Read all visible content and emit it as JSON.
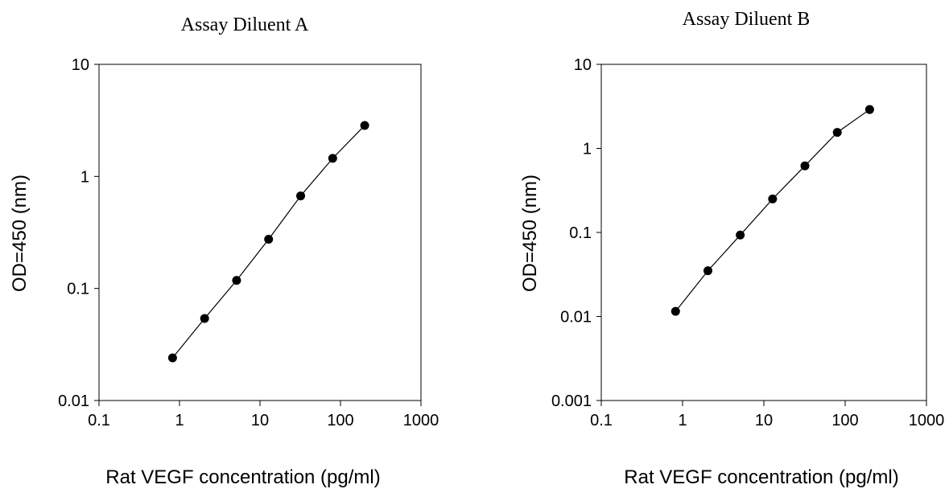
{
  "chart_data": [
    {
      "type": "scatter",
      "title": "Assay Diluent A",
      "xlabel": "Rat VEGF concentration (pg/ml)",
      "ylabel": "OD=450 (nm)",
      "xscale": "log",
      "yscale": "log",
      "xlim": [
        0.1,
        1000
      ],
      "ylim": [
        0.01,
        10
      ],
      "xticks": [
        "0.1",
        "1",
        "10",
        "100",
        "1000"
      ],
      "yticks": [
        "0.01",
        "0.1",
        "1",
        "10"
      ],
      "grid": false,
      "legend": "none",
      "series": [
        {
          "x": [
            0.82,
            2.05,
            5.12,
            12.8,
            32,
            80,
            200
          ],
          "y": [
            0.024,
            0.054,
            0.118,
            0.275,
            0.67,
            1.45,
            2.85
          ],
          "connected": true,
          "marker": "circle"
        }
      ]
    },
    {
      "type": "scatter",
      "title": "Assay Diluent B",
      "xlabel": "Rat VEGF concentration (pg/ml)",
      "ylabel": "OD=450 (nm)",
      "xscale": "log",
      "yscale": "log",
      "xlim": [
        0.1,
        1000
      ],
      "ylim": [
        0.001,
        10
      ],
      "xticks": [
        "0.1",
        "1",
        "10",
        "100",
        "1000"
      ],
      "yticks": [
        "0.001",
        "0.01",
        "0.1",
        "1",
        "10"
      ],
      "grid": false,
      "legend": "none",
      "series": [
        {
          "x": [
            0.82,
            2.05,
            5.12,
            12.8,
            32,
            80,
            200
          ],
          "y": [
            0.0115,
            0.035,
            0.093,
            0.25,
            0.62,
            1.55,
            2.9
          ],
          "connected": true,
          "marker": "circle"
        }
      ]
    }
  ]
}
